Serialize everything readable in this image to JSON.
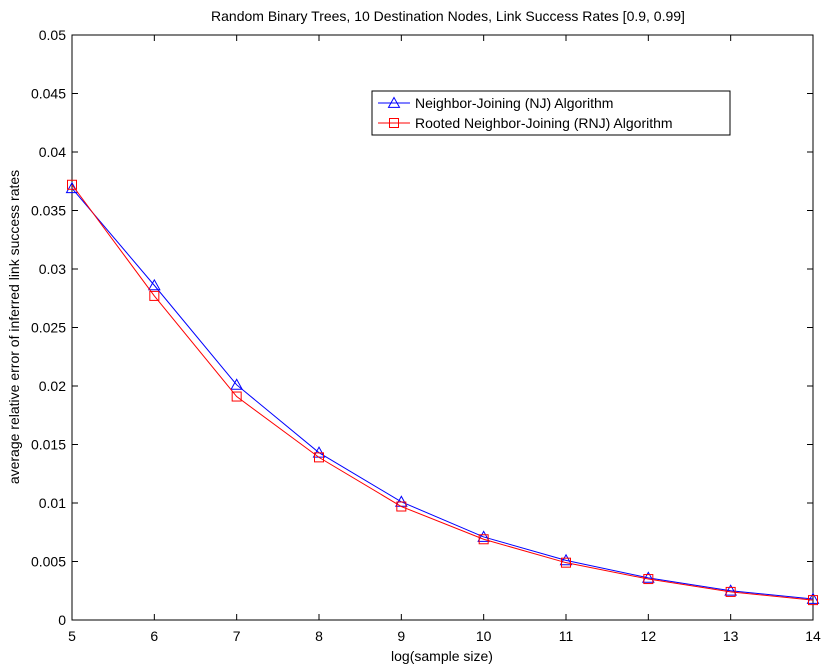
{
  "chart_data": {
    "type": "line",
    "title": "Random Binary Trees, 10 Destination Nodes, Link Success Rates [0.9, 0.99]",
    "xlabel": "log(sample size)",
    "ylabel": "average relative error of inferred link success rates",
    "xlim": [
      5,
      14
    ],
    "ylim": [
      0,
      0.05
    ],
    "x_ticks": [
      "5",
      "6",
      "7",
      "8",
      "9",
      "10",
      "11",
      "12",
      "13",
      "14"
    ],
    "y_ticks": [
      "0",
      "0.005",
      "0.01",
      "0.015",
      "0.02",
      "0.025",
      "0.03",
      "0.035",
      "0.04",
      "0.045",
      "0.05"
    ],
    "x": [
      5,
      6,
      7,
      8,
      9,
      10,
      11,
      12,
      13,
      14
    ],
    "grid": false,
    "legend_position": "top-right",
    "series": [
      {
        "name": "Neighbor-Joining (NJ) Algorithm",
        "marker": "triangle",
        "color": "#0000ff",
        "values": [
          0.0369,
          0.0286,
          0.0201,
          0.0143,
          0.0101,
          0.0071,
          0.0051,
          0.0036,
          0.0025,
          0.0018
        ]
      },
      {
        "name": "Rooted Neighbor-Joining (RNJ) Algorithm",
        "marker": "square",
        "color": "#ff0000",
        "values": [
          0.0372,
          0.0277,
          0.0191,
          0.0139,
          0.0097,
          0.0069,
          0.0049,
          0.0035,
          0.0024,
          0.0017
        ]
      }
    ]
  }
}
